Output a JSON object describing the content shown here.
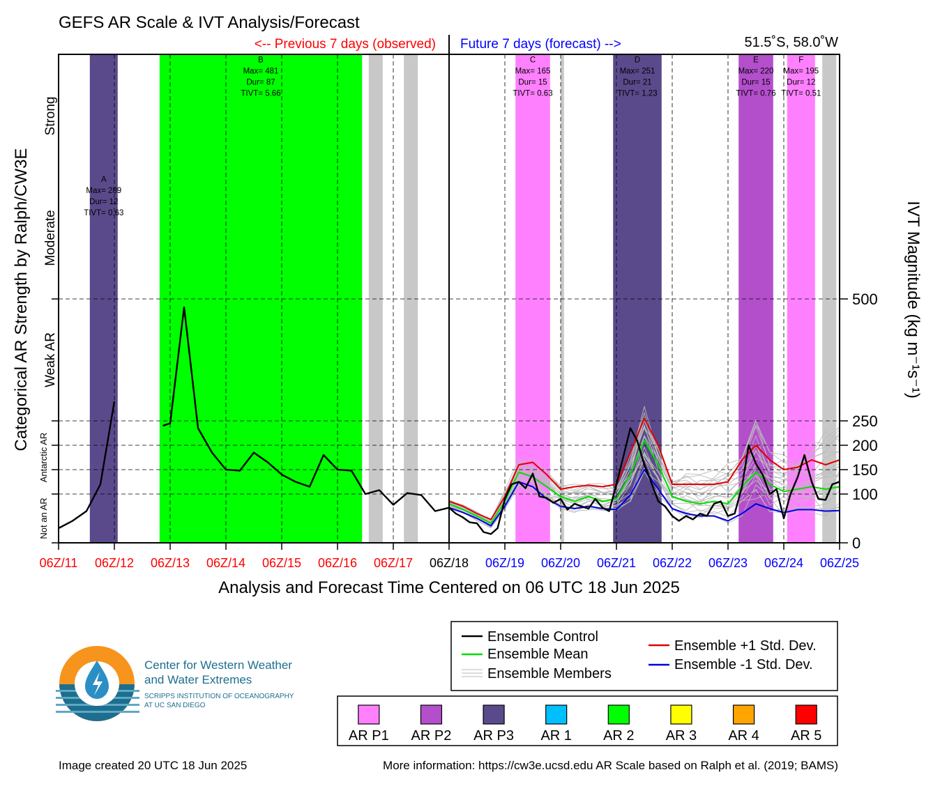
{
  "header": {
    "title": "GEFS AR Scale & IVT Analysis/Forecast",
    "previous_label": "<-- Previous 7 days (observed)",
    "future_label": "Future 7 days (forecast) -->",
    "location": "51.5˚S, 58.0˚W"
  },
  "colors": {
    "previous": "#ff0000",
    "future": "#0000ff",
    "control": "#000000",
    "mean": "#00e000",
    "plus_sd": "#e00000",
    "minus_sd": "#0000e0",
    "members": "#bbbbbb",
    "no_data": "#c8c8c8"
  },
  "chart_data": {
    "type": "line",
    "xlabel": "Analysis and Forecast Time Centered on 06 UTC 18 Jun 2025",
    "ylabel_left": "Categorical AR Strength by Ralph/CW3E",
    "ylabel_right": "IVT Magnitude (kg m⁻¹s⁻¹)",
    "x_unit": "days since 06Z/11 Jun 2025",
    "xlim": [
      0,
      14
    ],
    "ylim": [
      0,
      500
    ],
    "y_ticks": [
      0,
      100,
      150,
      200,
      250,
      500
    ],
    "category_labels": [
      {
        "label": "Not an AR",
        "y": 50,
        "size": "small"
      },
      {
        "label": "Antarctic AR",
        "y": 175,
        "size": "small"
      },
      {
        "label": "Weak AR",
        "y": 375,
        "size": "large"
      },
      {
        "label": "Moderate",
        "y": 625,
        "size": "large"
      },
      {
        "label": "Strong",
        "y": 875,
        "size": "large"
      }
    ],
    "x_ticks": [
      {
        "label": "06Z/11",
        "x": 0,
        "color": "red"
      },
      {
        "label": "06Z/12",
        "x": 1,
        "color": "red"
      },
      {
        "label": "06Z/13",
        "x": 2,
        "color": "red"
      },
      {
        "label": "06Z/14",
        "x": 3,
        "color": "red"
      },
      {
        "label": "06Z/15",
        "x": 4,
        "color": "red"
      },
      {
        "label": "06Z/16",
        "x": 5,
        "color": "red"
      },
      {
        "label": "06Z/17",
        "x": 6,
        "color": "red"
      },
      {
        "label": "06Z/18",
        "x": 7,
        "color": "black"
      },
      {
        "label": "06Z/19",
        "x": 8,
        "color": "blue"
      },
      {
        "label": "06Z/20",
        "x": 9,
        "color": "blue"
      },
      {
        "label": "06Z/21",
        "x": 10,
        "color": "blue"
      },
      {
        "label": "06Z/22",
        "x": 11,
        "color": "blue"
      },
      {
        "label": "06Z/23",
        "x": 12,
        "color": "blue"
      },
      {
        "label": "06Z/24",
        "x": 13,
        "color": "blue"
      },
      {
        "label": "06Z/25",
        "x": 14,
        "color": "blue"
      }
    ],
    "ar_events": [
      {
        "id": "A",
        "category": "AR P3",
        "color": "#5b4a8b",
        "x0": 0.56,
        "x1": 1.06,
        "top": 1000,
        "max": "289",
        "dur": "12",
        "tivt": "0.63",
        "label_y": 740
      },
      {
        "id": "B",
        "category": "AR 2",
        "color": "#00ff00",
        "x0": 1.81,
        "x1": 5.44,
        "top": 1000,
        "max": "481",
        "dur": "87",
        "tivt": "5.66",
        "label_y": 985
      },
      {
        "id": "C",
        "category": "AR P1",
        "color": "#ff80ff",
        "x0": 8.19,
        "x1": 8.81,
        "top": 1000,
        "max": "165",
        "dur": "15",
        "tivt": "0.63",
        "label_y": 985
      },
      {
        "id": "D",
        "category": "AR P3",
        "color": "#5b4a8b",
        "x0": 9.94,
        "x1": 10.81,
        "top": 1000,
        "max": "251",
        "dur": "21",
        "tivt": "1.23",
        "label_y": 985
      },
      {
        "id": "E",
        "category": "AR P2",
        "color": "#b44fcc",
        "x0": 12.19,
        "x1": 12.81,
        "top": 1000,
        "max": "220",
        "dur": "15",
        "tivt": "0.76",
        "label_y": 985
      },
      {
        "id": "F",
        "category": "AR P1",
        "color": "#ff80ff",
        "x0": 13.06,
        "x1": 13.56,
        "top": 1000,
        "max": "195",
        "dur": "12",
        "tivt": "0.51",
        "label_y": 985
      }
    ],
    "no_data_bands": [
      [
        5.56,
        5.81
      ],
      [
        6.19,
        6.44
      ],
      [
        9.0,
        9.06
      ],
      [
        13.69,
        13.94
      ]
    ],
    "series": [
      {
        "name": "Ensemble Control",
        "role": "control",
        "x": [
          0,
          0.25,
          0.5,
          0.75,
          1.0,
          1.87,
          2.0,
          2.25,
          2.5,
          2.75,
          3.0,
          3.25,
          3.5,
          3.75,
          4.0,
          4.25,
          4.5,
          4.75,
          5.0,
          5.25,
          5.5,
          5.75,
          6.0,
          6.25,
          6.5,
          6.75,
          7.0,
          7.12,
          7.25,
          7.37,
          7.5,
          7.62,
          7.75,
          7.87,
          8.0,
          8.12,
          8.25,
          8.37,
          8.5,
          8.62,
          8.75,
          8.87,
          9.0,
          9.12,
          9.25,
          9.37,
          9.5,
          9.62,
          9.75,
          9.87,
          10.0,
          10.12,
          10.25,
          10.37,
          10.5,
          10.62,
          10.75,
          10.87,
          11.0,
          11.12,
          11.25,
          11.37,
          11.5,
          11.62,
          11.75,
          11.87,
          12.0,
          12.12,
          12.25,
          12.37,
          12.5,
          12.62,
          12.75,
          12.87,
          13.0,
          13.12,
          13.25,
          13.37,
          13.5,
          13.62,
          13.75,
          13.87,
          14.0
        ],
        "y": [
          30,
          45,
          65,
          120,
          290,
          240,
          245,
          483,
          235,
          185,
          150,
          148,
          185,
          165,
          140,
          125,
          115,
          180,
          150,
          148,
          100,
          108,
          78,
          102,
          98,
          65,
          72,
          60,
          52,
          42,
          40,
          22,
          18,
          30,
          90,
          120,
          125,
          112,
          142,
          95,
          92,
          82,
          90,
          68,
          80,
          75,
          70,
          90,
          72,
          65,
          120,
          175,
          235,
          210,
          160,
          125,
          85,
          75,
          55,
          45,
          55,
          48,
          60,
          55,
          80,
          85,
          55,
          60,
          115,
          200,
          162,
          140,
          100,
          110,
          50,
          100,
          135,
          180,
          125,
          90,
          88,
          120,
          125
        ]
      },
      {
        "name": "Ensemble Mean",
        "role": "mean",
        "x": [
          7.0,
          7.25,
          7.5,
          7.75,
          8.0,
          8.25,
          8.5,
          8.75,
          9.0,
          9.25,
          9.5,
          9.75,
          10.0,
          10.25,
          10.5,
          10.75,
          11.0,
          11.25,
          11.5,
          11.75,
          12.0,
          12.25,
          12.5,
          12.75,
          13.0,
          13.25,
          13.5,
          13.75,
          14.0
        ],
        "y": [
          80,
          68,
          55,
          40,
          85,
          145,
          135,
          115,
          95,
          85,
          95,
          85,
          90,
          140,
          210,
          160,
          95,
          85,
          80,
          85,
          80,
          115,
          145,
          120,
          105,
          110,
          115,
          110,
          115
        ]
      },
      {
        "name": "Ensemble +1 Std. Dev.",
        "role": "plus_sd",
        "x": [
          7.0,
          7.25,
          7.5,
          7.75,
          8.0,
          8.25,
          8.5,
          8.75,
          9.0,
          9.25,
          9.5,
          9.75,
          10.0,
          10.25,
          10.5,
          10.75,
          11.0,
          11.25,
          11.5,
          11.75,
          12.0,
          12.25,
          12.5,
          12.75,
          13.0,
          13.25,
          13.5,
          13.75,
          14.0
        ],
        "y": [
          85,
          75,
          60,
          48,
          95,
          160,
          165,
          140,
          110,
          115,
          118,
          115,
          120,
          185,
          255,
          200,
          120,
          120,
          120,
          120,
          125,
          170,
          200,
          170,
          150,
          155,
          170,
          160,
          170
        ]
      },
      {
        "name": "Ensemble -1 Std. Dev.",
        "role": "minus_sd",
        "x": [
          7.0,
          7.25,
          7.5,
          7.75,
          8.0,
          8.25,
          8.5,
          8.75,
          9.0,
          9.25,
          9.5,
          9.75,
          10.0,
          10.25,
          10.5,
          10.75,
          11.0,
          11.25,
          11.5,
          11.75,
          12.0,
          12.25,
          12.5,
          12.75,
          13.0,
          13.25,
          13.5,
          13.75,
          14.0
        ],
        "y": [
          72,
          62,
          50,
          35,
          75,
          125,
          115,
          90,
          75,
          70,
          75,
          70,
          68,
          98,
          150,
          110,
          70,
          60,
          55,
          55,
          45,
          60,
          80,
          70,
          62,
          68,
          68,
          65,
          66
        ]
      }
    ],
    "ensemble_members": {
      "name": "Ensemble Members",
      "x": [
        7.0,
        7.25,
        7.5,
        7.75,
        8.0,
        8.25,
        8.5,
        8.75,
        9.0,
        9.25,
        9.5,
        9.75,
        10.0,
        10.25,
        10.5,
        10.75,
        11.0,
        11.25,
        11.5,
        11.75,
        12.0,
        12.25,
        12.5,
        12.75,
        13.0,
        13.25,
        13.5,
        13.75,
        14.0
      ],
      "low": [
        70,
        60,
        45,
        30,
        65,
        110,
        100,
        80,
        65,
        60,
        65,
        60,
        60,
        85,
        130,
        95,
        60,
        50,
        45,
        45,
        40,
        55,
        70,
        60,
        55,
        55,
        60,
        55,
        60
      ],
      "high": [
        90,
        80,
        65,
        50,
        110,
        175,
        175,
        155,
        125,
        125,
        130,
        125,
        130,
        200,
        295,
        215,
        135,
        150,
        150,
        160,
        165,
        200,
        280,
        200,
        185,
        190,
        225,
        230,
        265
      ]
    },
    "legend": {
      "control": "Ensemble Control",
      "mean": "Ensemble Mean",
      "members": "Ensemble Members",
      "plus_sd": "Ensemble +1 Std. Dev.",
      "minus_sd": "Ensemble -1 Std. Dev."
    },
    "ar_categories": [
      {
        "label": "AR P1",
        "color": "#ff80ff"
      },
      {
        "label": "AR P2",
        "color": "#b44fcc"
      },
      {
        "label": "AR P3",
        "color": "#5b4a8b"
      },
      {
        "label": "AR 1",
        "color": "#00bfff"
      },
      {
        "label": "AR 2",
        "color": "#00ff00"
      },
      {
        "label": "AR 3",
        "color": "#ffff00"
      },
      {
        "label": "AR 4",
        "color": "#ffa500"
      },
      {
        "label": "AR 5",
        "color": "#ff0000"
      }
    ]
  },
  "logo": {
    "line1": "Center for Western Weather",
    "line2": "and Water Extremes",
    "line3": "SCRIPPS INSTITUTION OF OCEANOGRAPHY",
    "line4": "AT UC SAN DIEGO"
  },
  "footer": {
    "created": "Image created 20 UTC 18 Jun 2025",
    "info": "More information: https://cw3e.ucsd.edu AR Scale based on Ralph et al. (2019; BAMS)"
  }
}
